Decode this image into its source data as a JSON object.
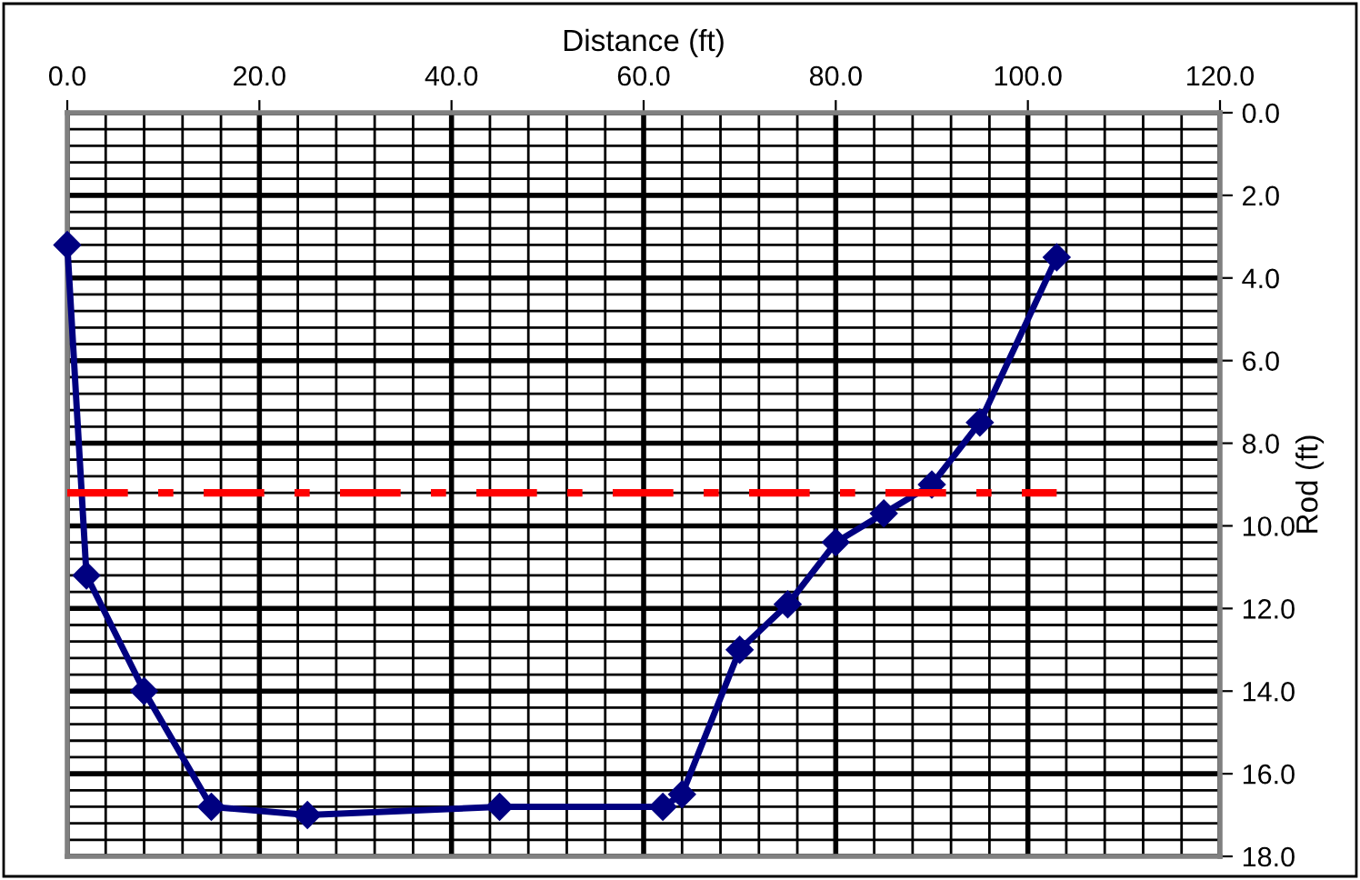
{
  "chart_data": {
    "type": "line",
    "xlabel": "Distance (ft)",
    "ylabel": "Rod (ft)",
    "xlim": [
      0,
      120
    ],
    "ylim": [
      18,
      0
    ],
    "xticks": [
      {
        "value": 0,
        "label": "0.0"
      },
      {
        "value": 20,
        "label": "20.0"
      },
      {
        "value": 40,
        "label": "40.0"
      },
      {
        "value": 60,
        "label": "60.0"
      },
      {
        "value": 80,
        "label": "80.0"
      },
      {
        "value": 100,
        "label": "100.0"
      },
      {
        "value": 120,
        "label": "120.0"
      }
    ],
    "yticks": [
      {
        "value": 0,
        "label": "0.0"
      },
      {
        "value": 2,
        "label": "2.0"
      },
      {
        "value": 4,
        "label": "4.0"
      },
      {
        "value": 6,
        "label": "6.0"
      },
      {
        "value": 8,
        "label": "8.0"
      },
      {
        "value": 10,
        "label": "10.0"
      },
      {
        "value": 12,
        "label": "12.0"
      },
      {
        "value": 14,
        "label": "14.0"
      },
      {
        "value": 16,
        "label": "16.0"
      },
      {
        "value": 18,
        "label": "18.0"
      }
    ],
    "grid": true,
    "legend": false,
    "series": [
      {
        "color": "#000080",
        "marker": "diamond",
        "line_style": "solid",
        "x": [
          0,
          2,
          8,
          15,
          25,
          45,
          62,
          64,
          70,
          75,
          80,
          85,
          90,
          95,
          103
        ],
        "values": [
          3.2,
          11.2,
          14.0,
          16.8,
          17.0,
          16.8,
          16.8,
          16.5,
          13.0,
          11.9,
          10.4,
          9.7,
          9.0,
          7.5,
          3.5
        ]
      },
      {
        "color": "#ff0000",
        "marker": "none",
        "line_style": "dashed",
        "x": [
          0,
          103
        ],
        "values": [
          9.2,
          9.2
        ]
      }
    ]
  }
}
